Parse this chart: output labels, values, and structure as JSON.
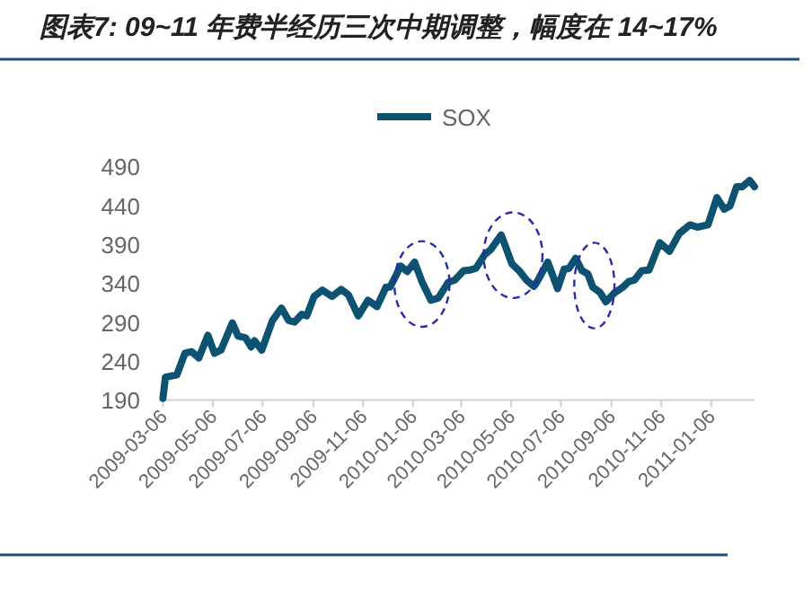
{
  "chart_data": {
    "type": "line",
    "title": "图表7: 09~11 年费半经历三次中期调整，幅度在 14~17%",
    "x": [
      "2009-03-06",
      "2009-03-09",
      "2009-03-17",
      "2009-03-23",
      "2009-04-02",
      "2009-04-10",
      "2009-04-19",
      "2009-04-30",
      "2009-05-08",
      "2009-05-16",
      "2009-05-30",
      "2009-06-06",
      "2009-06-15",
      "2009-06-22",
      "2009-06-26",
      "2009-07-05",
      "2009-07-18",
      "2009-07-29",
      "2009-08-07",
      "2009-08-14",
      "2009-08-23",
      "2009-08-29",
      "2009-09-07",
      "2009-09-17",
      "2009-09-29",
      "2009-10-10",
      "2009-10-19",
      "2009-10-31",
      "2009-11-12",
      "2009-11-23",
      "2009-12-04",
      "2009-12-09",
      "2009-12-22",
      "2009-12-30",
      "2010-01-08",
      "2010-01-17",
      "2010-01-28",
      "2010-02-06",
      "2010-02-18",
      "2010-02-26",
      "2010-03-09",
      "2010-03-17",
      "2010-03-24",
      "2010-04-04",
      "2010-04-11",
      "2010-04-24",
      "2010-05-07",
      "2010-05-16",
      "2010-05-25",
      "2010-06-03",
      "2010-06-07",
      "2010-06-20",
      "2010-07-02",
      "2010-07-10",
      "2010-07-16",
      "2010-07-24",
      "2010-08-01",
      "2010-08-08",
      "2010-08-14",
      "2010-08-23",
      "2010-08-30",
      "2010-09-09",
      "2010-09-20",
      "2010-09-27",
      "2010-10-04",
      "2010-10-13",
      "2010-10-22",
      "2010-11-04",
      "2010-11-16",
      "2010-11-28",
      "2010-12-11",
      "2010-12-20",
      "2011-01-02",
      "2011-01-13",
      "2011-01-22",
      "2011-01-29",
      "2011-02-06",
      "2011-02-13",
      "2011-02-22",
      "2011-02-28"
    ],
    "series": [
      {
        "name": "SOX",
        "color": "#0e5272",
        "values": [
          192,
          219,
          221,
          222,
          250,
          252,
          244,
          273,
          250,
          254,
          289,
          272,
          270,
          258,
          266,
          254,
          292,
          308,
          292,
          290,
          300,
          298,
          323,
          331,
          323,
          332,
          325,
          298,
          318,
          310,
          335,
          335,
          362,
          355,
          367,
          342,
          318,
          321,
          341,
          344,
          356,
          357,
          359,
          377,
          383,
          402,
          365,
          356,
          344,
          336,
          342,
          367,
          333,
          358,
          359,
          372,
          356,
          352,
          335,
          328,
          316,
          327,
          335,
          342,
          344,
          356,
          357,
          392,
          381,
          404,
          415,
          412,
          415,
          450,
          435,
          439,
          464,
          464,
          472,
          464
        ]
      }
    ],
    "xlim": [
      "2009-03-06",
      "2011-02-28"
    ],
    "xticks": [
      "2009-03-06",
      "2009-05-06",
      "2009-07-06",
      "2009-09-06",
      "2009-11-06",
      "2010-01-06",
      "2010-03-06",
      "2010-05-06",
      "2010-07-06",
      "2010-09-06",
      "2010-11-06",
      "2011-01-06"
    ],
    "ylim": [
      190,
      490
    ],
    "yticks": [
      190,
      240,
      290,
      340,
      390,
      440,
      490
    ],
    "legend": "top",
    "grid": false,
    "marker": "none",
    "line_style": "solid"
  }
}
